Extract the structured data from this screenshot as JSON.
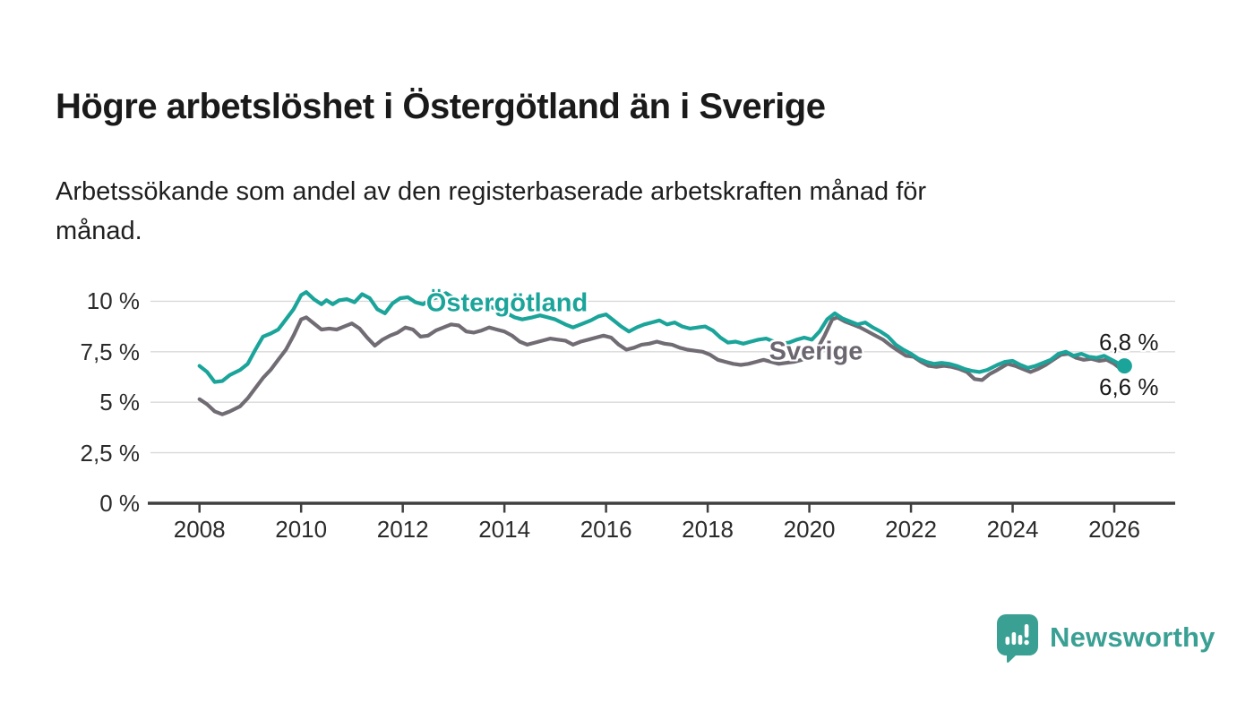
{
  "title": "Högre arbetslöshet i Östergötland än i Sverige",
  "subtitle": "Arbetssökande som andel av den registerbaserade arbetskraften månad för\nmånad.",
  "branding": {
    "logo_text": "Newsworthy",
    "logo_icon": "speech-bubble-bar-chart",
    "brand_color": "#3ba094"
  },
  "chart_data": {
    "type": "line",
    "title": "Högre arbetslöshet i Östergötland än i Sverige",
    "unit": "percent",
    "grid": true,
    "legend": "inline-labels",
    "y_axis": {
      "range": [
        0,
        11.2
      ],
      "ticks": [
        {
          "value": 10,
          "label": "10 %"
        },
        {
          "value": 7.5,
          "label": "7,5 %"
        },
        {
          "value": 5,
          "label": "5 %"
        },
        {
          "value": 2.5,
          "label": "2,5 %"
        },
        {
          "value": 0,
          "label": "0 %"
        }
      ]
    },
    "x_axis": {
      "range": [
        2007.05,
        2027.2
      ],
      "ticks": [
        2008,
        2010,
        2012,
        2014,
        2016,
        2018,
        2020,
        2022,
        2024,
        2026
      ]
    },
    "series": [
      {
        "name": "Östergötland",
        "color": "#1aa49a",
        "end_label": "6,8 %",
        "end_dot": true,
        "points": [
          [
            2008.0,
            6.8
          ],
          [
            2008.15,
            6.5
          ],
          [
            2008.3,
            6.0
          ],
          [
            2008.45,
            6.05
          ],
          [
            2008.6,
            6.35
          ],
          [
            2008.8,
            6.6
          ],
          [
            2008.95,
            6.9
          ],
          [
            2009.1,
            7.6
          ],
          [
            2009.25,
            8.25
          ],
          [
            2009.4,
            8.4
          ],
          [
            2009.55,
            8.6
          ],
          [
            2009.7,
            9.1
          ],
          [
            2009.85,
            9.6
          ],
          [
            2010.0,
            10.3
          ],
          [
            2010.1,
            10.45
          ],
          [
            2010.25,
            10.1
          ],
          [
            2010.4,
            9.85
          ],
          [
            2010.5,
            10.05
          ],
          [
            2010.62,
            9.85
          ],
          [
            2010.75,
            10.05
          ],
          [
            2010.9,
            10.1
          ],
          [
            2011.05,
            9.95
          ],
          [
            2011.2,
            10.35
          ],
          [
            2011.35,
            10.15
          ],
          [
            2011.5,
            9.6
          ],
          [
            2011.65,
            9.4
          ],
          [
            2011.8,
            9.9
          ],
          [
            2011.95,
            10.15
          ],
          [
            2012.1,
            10.2
          ],
          [
            2012.25,
            9.95
          ],
          [
            2012.4,
            9.85
          ],
          [
            2012.55,
            10.1
          ],
          [
            2012.7,
            10.2
          ],
          [
            2012.85,
            10.4
          ],
          [
            2013.0,
            10.15
          ],
          [
            2013.15,
            9.9
          ],
          [
            2013.3,
            9.7
          ],
          [
            2013.45,
            9.75
          ],
          [
            2013.6,
            9.9
          ],
          [
            2013.75,
            9.7
          ],
          [
            2013.9,
            9.55
          ],
          [
            2014.05,
            9.4
          ],
          [
            2014.2,
            9.2
          ],
          [
            2014.35,
            9.1
          ],
          [
            2014.55,
            9.2
          ],
          [
            2014.7,
            9.3
          ],
          [
            2014.85,
            9.2
          ],
          [
            2015.0,
            9.1
          ],
          [
            2015.2,
            8.85
          ],
          [
            2015.35,
            8.7
          ],
          [
            2015.55,
            8.9
          ],
          [
            2015.7,
            9.05
          ],
          [
            2015.85,
            9.25
          ],
          [
            2016.0,
            9.35
          ],
          [
            2016.15,
            9.05
          ],
          [
            2016.3,
            8.75
          ],
          [
            2016.45,
            8.5
          ],
          [
            2016.6,
            8.7
          ],
          [
            2016.75,
            8.85
          ],
          [
            2016.9,
            8.95
          ],
          [
            2017.05,
            9.05
          ],
          [
            2017.2,
            8.85
          ],
          [
            2017.35,
            8.95
          ],
          [
            2017.5,
            8.75
          ],
          [
            2017.65,
            8.65
          ],
          [
            2017.8,
            8.7
          ],
          [
            2017.95,
            8.75
          ],
          [
            2018.1,
            8.55
          ],
          [
            2018.25,
            8.2
          ],
          [
            2018.4,
            7.95
          ],
          [
            2018.55,
            8.0
          ],
          [
            2018.7,
            7.9
          ],
          [
            2018.85,
            8.0
          ],
          [
            2019.0,
            8.1
          ],
          [
            2019.15,
            8.15
          ],
          [
            2019.3,
            8.0
          ],
          [
            2019.45,
            7.9
          ],
          [
            2019.6,
            7.95
          ],
          [
            2019.75,
            8.1
          ],
          [
            2019.9,
            8.2
          ],
          [
            2020.05,
            8.1
          ],
          [
            2020.2,
            8.5
          ],
          [
            2020.35,
            9.1
          ],
          [
            2020.5,
            9.4
          ],
          [
            2020.65,
            9.15
          ],
          [
            2020.8,
            9.0
          ],
          [
            2020.95,
            8.85
          ],
          [
            2021.1,
            8.95
          ],
          [
            2021.25,
            8.7
          ],
          [
            2021.4,
            8.5
          ],
          [
            2021.55,
            8.25
          ],
          [
            2021.7,
            7.85
          ],
          [
            2021.85,
            7.6
          ],
          [
            2022.0,
            7.4
          ],
          [
            2022.15,
            7.15
          ],
          [
            2022.3,
            7.0
          ],
          [
            2022.45,
            6.9
          ],
          [
            2022.6,
            6.95
          ],
          [
            2022.75,
            6.9
          ],
          [
            2022.9,
            6.8
          ],
          [
            2023.05,
            6.65
          ],
          [
            2023.2,
            6.55
          ],
          [
            2023.35,
            6.5
          ],
          [
            2023.5,
            6.6
          ],
          [
            2023.7,
            6.85
          ],
          [
            2023.85,
            7.0
          ],
          [
            2024.0,
            7.05
          ],
          [
            2024.15,
            6.85
          ],
          [
            2024.3,
            6.7
          ],
          [
            2024.45,
            6.8
          ],
          [
            2024.6,
            6.95
          ],
          [
            2024.75,
            7.1
          ],
          [
            2024.9,
            7.4
          ],
          [
            2025.05,
            7.5
          ],
          [
            2025.2,
            7.3
          ],
          [
            2025.35,
            7.4
          ],
          [
            2025.5,
            7.25
          ],
          [
            2025.65,
            7.2
          ],
          [
            2025.8,
            7.3
          ],
          [
            2025.95,
            7.1
          ],
          [
            2026.1,
            6.9
          ],
          [
            2026.2,
            6.8
          ]
        ]
      },
      {
        "name": "Sverige",
        "color": "#716c74",
        "end_label": "6,6 %",
        "end_dot": false,
        "points": [
          [
            2008.0,
            5.15
          ],
          [
            2008.15,
            4.9
          ],
          [
            2008.3,
            4.55
          ],
          [
            2008.45,
            4.4
          ],
          [
            2008.6,
            4.55
          ],
          [
            2008.8,
            4.8
          ],
          [
            2008.95,
            5.2
          ],
          [
            2009.1,
            5.7
          ],
          [
            2009.25,
            6.2
          ],
          [
            2009.4,
            6.6
          ],
          [
            2009.55,
            7.1
          ],
          [
            2009.7,
            7.6
          ],
          [
            2009.85,
            8.3
          ],
          [
            2010.0,
            9.1
          ],
          [
            2010.1,
            9.2
          ],
          [
            2010.25,
            8.9
          ],
          [
            2010.4,
            8.6
          ],
          [
            2010.55,
            8.65
          ],
          [
            2010.7,
            8.6
          ],
          [
            2010.85,
            8.75
          ],
          [
            2011.0,
            8.9
          ],
          [
            2011.15,
            8.65
          ],
          [
            2011.3,
            8.2
          ],
          [
            2011.45,
            7.8
          ],
          [
            2011.6,
            8.1
          ],
          [
            2011.75,
            8.3
          ],
          [
            2011.9,
            8.45
          ],
          [
            2012.05,
            8.7
          ],
          [
            2012.2,
            8.6
          ],
          [
            2012.35,
            8.25
          ],
          [
            2012.5,
            8.3
          ],
          [
            2012.65,
            8.55
          ],
          [
            2012.8,
            8.7
          ],
          [
            2012.95,
            8.85
          ],
          [
            2013.1,
            8.8
          ],
          [
            2013.25,
            8.5
          ],
          [
            2013.4,
            8.45
          ],
          [
            2013.55,
            8.55
          ],
          [
            2013.7,
            8.7
          ],
          [
            2013.85,
            8.6
          ],
          [
            2014.0,
            8.5
          ],
          [
            2014.15,
            8.3
          ],
          [
            2014.3,
            8.0
          ],
          [
            2014.45,
            7.85
          ],
          [
            2014.6,
            7.95
          ],
          [
            2014.75,
            8.05
          ],
          [
            2014.9,
            8.15
          ],
          [
            2015.05,
            8.1
          ],
          [
            2015.2,
            8.05
          ],
          [
            2015.35,
            7.85
          ],
          [
            2015.5,
            8.0
          ],
          [
            2015.65,
            8.1
          ],
          [
            2015.8,
            8.2
          ],
          [
            2015.95,
            8.3
          ],
          [
            2016.1,
            8.2
          ],
          [
            2016.25,
            7.85
          ],
          [
            2016.4,
            7.6
          ],
          [
            2016.55,
            7.7
          ],
          [
            2016.7,
            7.85
          ],
          [
            2016.85,
            7.9
          ],
          [
            2017.0,
            8.0
          ],
          [
            2017.15,
            7.9
          ],
          [
            2017.3,
            7.85
          ],
          [
            2017.45,
            7.7
          ],
          [
            2017.6,
            7.6
          ],
          [
            2017.75,
            7.55
          ],
          [
            2017.9,
            7.5
          ],
          [
            2018.05,
            7.35
          ],
          [
            2018.2,
            7.1
          ],
          [
            2018.35,
            7.0
          ],
          [
            2018.5,
            6.9
          ],
          [
            2018.65,
            6.85
          ],
          [
            2018.8,
            6.9
          ],
          [
            2018.95,
            7.0
          ],
          [
            2019.1,
            7.1
          ],
          [
            2019.25,
            7.0
          ],
          [
            2019.4,
            6.9
          ],
          [
            2019.55,
            6.95
          ],
          [
            2019.7,
            7.0
          ],
          [
            2019.85,
            7.1
          ],
          [
            2020.0,
            7.3
          ],
          [
            2020.15,
            7.6
          ],
          [
            2020.3,
            8.3
          ],
          [
            2020.45,
            9.1
          ],
          [
            2020.55,
            9.2
          ],
          [
            2020.7,
            9.0
          ],
          [
            2020.85,
            8.85
          ],
          [
            2021.0,
            8.7
          ],
          [
            2021.15,
            8.5
          ],
          [
            2021.3,
            8.3
          ],
          [
            2021.45,
            8.1
          ],
          [
            2021.6,
            7.8
          ],
          [
            2021.75,
            7.55
          ],
          [
            2021.9,
            7.3
          ],
          [
            2022.05,
            7.25
          ],
          [
            2022.2,
            7.0
          ],
          [
            2022.35,
            6.8
          ],
          [
            2022.5,
            6.75
          ],
          [
            2022.65,
            6.8
          ],
          [
            2022.8,
            6.75
          ],
          [
            2022.95,
            6.65
          ],
          [
            2023.1,
            6.5
          ],
          [
            2023.25,
            6.15
          ],
          [
            2023.4,
            6.1
          ],
          [
            2023.55,
            6.4
          ],
          [
            2023.7,
            6.6
          ],
          [
            2023.9,
            6.9
          ],
          [
            2024.05,
            6.8
          ],
          [
            2024.2,
            6.65
          ],
          [
            2024.35,
            6.5
          ],
          [
            2024.5,
            6.65
          ],
          [
            2024.65,
            6.85
          ],
          [
            2024.8,
            7.1
          ],
          [
            2024.95,
            7.35
          ],
          [
            2025.1,
            7.4
          ],
          [
            2025.25,
            7.2
          ],
          [
            2025.4,
            7.1
          ],
          [
            2025.55,
            7.15
          ],
          [
            2025.7,
            7.05
          ],
          [
            2025.85,
            7.1
          ],
          [
            2026.0,
            6.9
          ],
          [
            2026.1,
            6.7
          ],
          [
            2026.2,
            6.6
          ]
        ]
      }
    ]
  }
}
